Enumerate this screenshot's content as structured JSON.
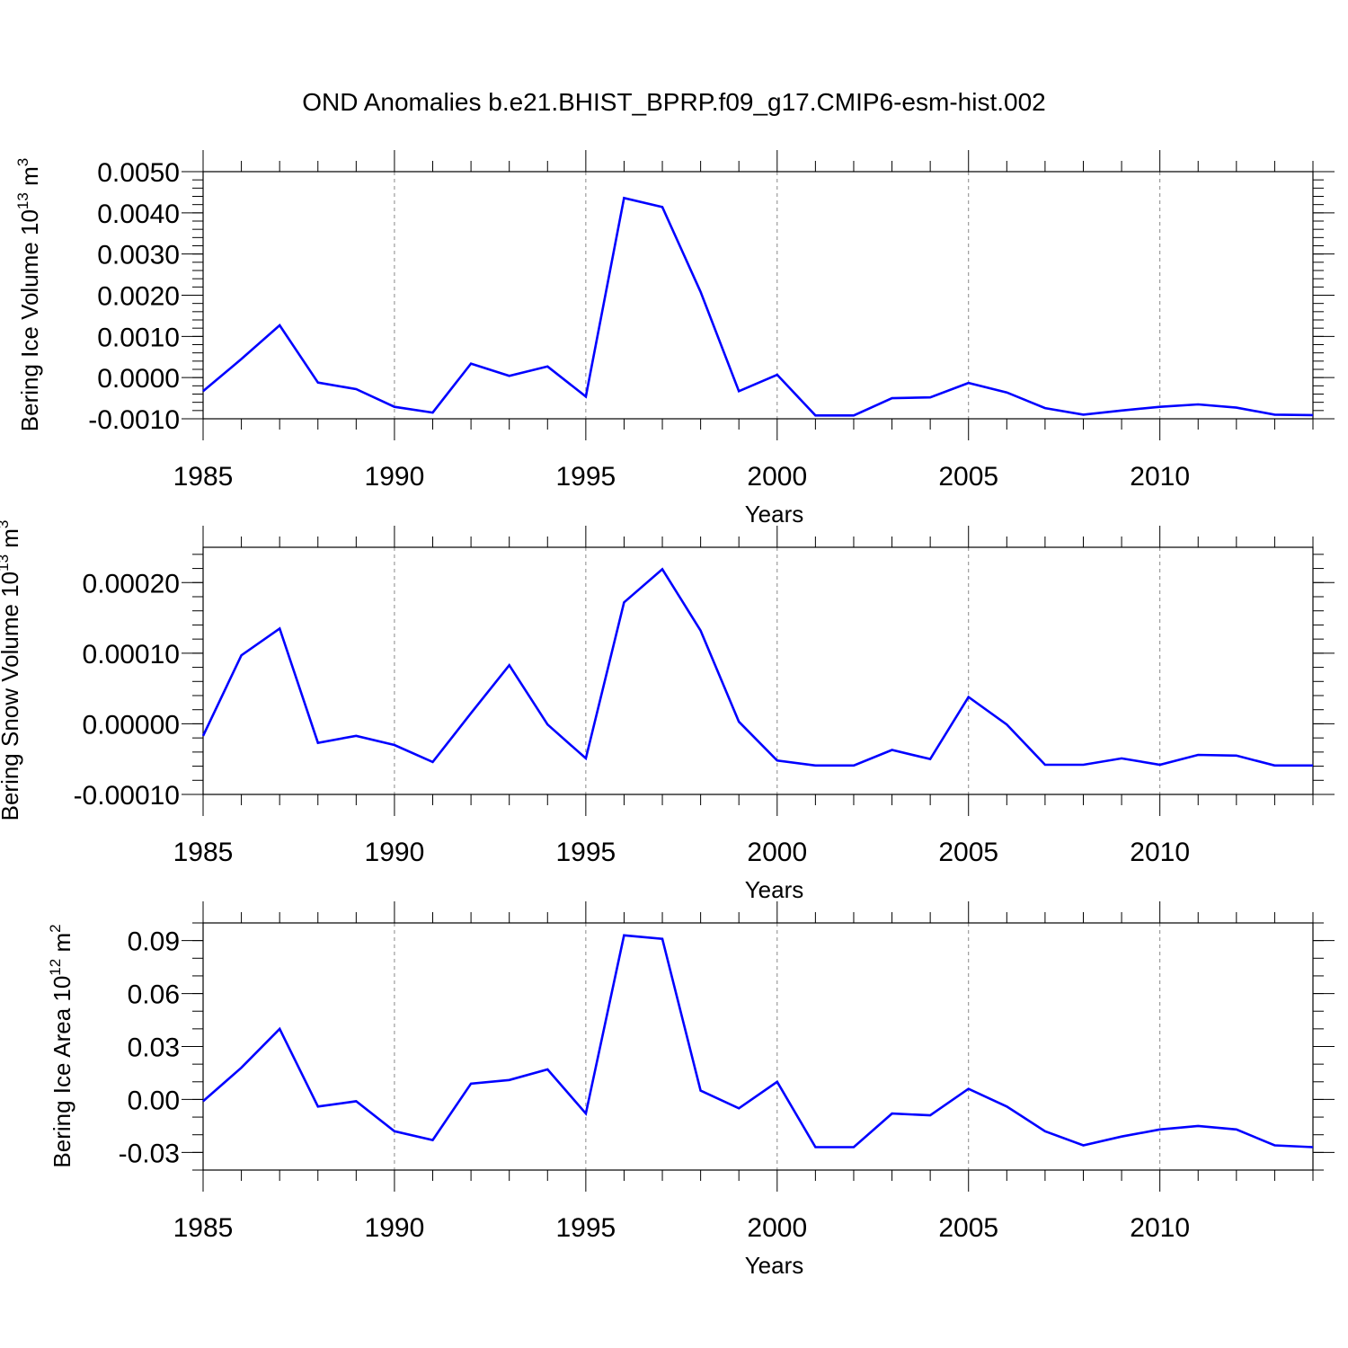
{
  "title": "OND Anomalies b.e21.BHIST_BPRP.f09_g17.CMIP6-esm-hist.002",
  "chart_data": [
    {
      "type": "line",
      "name": "ice-volume",
      "title": "OND Anomalies b.e21.BHIST_BPRP.f09_g17.CMIP6-esm-hist.002",
      "xlabel": "Years",
      "ylabel": "Bering Ice Volume 10",
      "ylabel_exp": "13",
      "ylabel_unit": " m",
      "ylabel_unit_exp": "3",
      "xlim": [
        1985,
        2014
      ],
      "ylim": [
        -0.001,
        0.005
      ],
      "x_ticks": [
        "1985",
        "1990",
        "1995",
        "2000",
        "2005",
        "2010"
      ],
      "y_ticks": [
        "0.0050",
        "0.0040",
        "0.0030",
        "0.0020",
        "0.0010",
        "0.0000",
        "-0.0010"
      ],
      "y_tick_values": [
        0.005,
        0.004,
        0.003,
        0.002,
        0.001,
        0.0,
        -0.001
      ],
      "line_color": "#0000ff",
      "x": [
        1985,
        1986,
        1987,
        1988,
        1989,
        1990,
        1991,
        1992,
        1993,
        1994,
        1995,
        1996,
        1997,
        1998,
        1999,
        2000,
        2001,
        2002,
        2003,
        2004,
        2005,
        2006,
        2007,
        2008,
        2009,
        2010,
        2011,
        2012,
        2013,
        2014
      ],
      "values": [
        -0.00033,
        0.00045,
        0.00127,
        -0.00012,
        -0.00028,
        -0.00071,
        -0.00085,
        0.00034,
        4e-05,
        0.00027,
        -0.00046,
        0.00436,
        0.00414,
        0.00208,
        -0.00033,
        7e-05,
        -0.00092,
        -0.00092,
        -0.0005,
        -0.00048,
        -0.00013,
        -0.00036,
        -0.00074,
        -0.0009,
        -0.0008,
        -0.00071,
        -0.00065,
        -0.00073,
        -0.0009,
        -0.00091
      ]
    },
    {
      "type": "line",
      "name": "snow-volume",
      "xlabel": "Years",
      "ylabel": "Bering Snow Volume 10",
      "ylabel_exp": "13",
      "ylabel_unit": " m",
      "ylabel_unit_exp": "3",
      "xlim": [
        1985,
        2014
      ],
      "ylim": [
        -0.0001,
        0.00025
      ],
      "x_ticks": [
        "1985",
        "1990",
        "1995",
        "2000",
        "2005",
        "2010"
      ],
      "y_ticks": [
        "0.00020",
        "0.00010",
        "0.00000",
        "-0.00010"
      ],
      "y_tick_values": [
        0.0002,
        0.0001,
        0.0,
        -0.0001
      ],
      "line_color": "#0000ff",
      "x": [
        1985,
        1986,
        1987,
        1988,
        1989,
        1990,
        1991,
        1992,
        1993,
        1994,
        1995,
        1996,
        1997,
        1998,
        1999,
        2000,
        2001,
        2002,
        2003,
        2004,
        2005,
        2006,
        2007,
        2008,
        2009,
        2010,
        2011,
        2012,
        2013,
        2014
      ],
      "values": [
        -1.7e-05,
        9.7e-05,
        0.000135,
        -2.7e-05,
        -1.7e-05,
        -3e-05,
        -5.4e-05,
        1.5e-05,
        8.3e-05,
        -1e-06,
        -4.9e-05,
        0.000172,
        0.000219,
        0.000132,
        3e-06,
        -5.2e-05,
        -5.9e-05,
        -5.9e-05,
        -3.7e-05,
        -5e-05,
        3.8e-05,
        -1e-06,
        -5.8e-05,
        -5.8e-05,
        -4.9e-05,
        -5.8e-05,
        -4.4e-05,
        -4.5e-05,
        -5.9e-05,
        -5.9e-05
      ]
    },
    {
      "type": "line",
      "name": "ice-area",
      "xlabel": "Years",
      "ylabel": "Bering Ice Area 10",
      "ylabel_exp": "12",
      "ylabel_unit": " m",
      "ylabel_unit_exp": "2",
      "xlim": [
        1985,
        2014
      ],
      "ylim": [
        -0.04,
        0.1
      ],
      "x_ticks": [
        "1985",
        "1990",
        "1995",
        "2000",
        "2005",
        "2010"
      ],
      "y_ticks": [
        "0.09",
        "0.06",
        "0.03",
        "0.00",
        "-0.03"
      ],
      "y_tick_values": [
        0.09,
        0.06,
        0.03,
        0.0,
        -0.03
      ],
      "line_color": "#0000ff",
      "x": [
        1985,
        1986,
        1987,
        1988,
        1989,
        1990,
        1991,
        1992,
        1993,
        1994,
        1995,
        1996,
        1997,
        1998,
        1999,
        2000,
        2001,
        2002,
        2003,
        2004,
        2005,
        2006,
        2007,
        2008,
        2009,
        2010,
        2011,
        2012,
        2013,
        2014
      ],
      "values": [
        -0.001,
        0.018,
        0.04,
        -0.004,
        -0.001,
        -0.018,
        -0.023,
        0.009,
        0.011,
        0.017,
        -0.008,
        0.093,
        0.091,
        0.005,
        -0.005,
        0.01,
        -0.027,
        -0.027,
        -0.008,
        -0.009,
        0.006,
        -0.004,
        -0.018,
        -0.026,
        -0.021,
        -0.017,
        -0.015,
        -0.017,
        -0.026,
        -0.027
      ]
    }
  ]
}
